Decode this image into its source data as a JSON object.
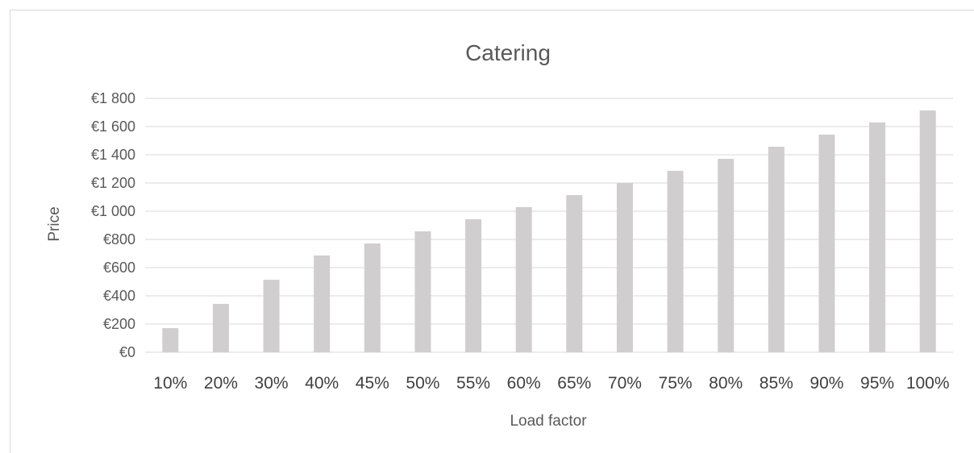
{
  "chart_data": {
    "type": "bar",
    "title": "Catering",
    "xlabel": "Load factor",
    "ylabel": "Price",
    "categories": [
      "10%",
      "20%",
      "30%",
      "40%",
      "45%",
      "50%",
      "55%",
      "60%",
      "65%",
      "70%",
      "75%",
      "80%",
      "85%",
      "90%",
      "95%",
      "100%"
    ],
    "values": [
      171,
      343,
      514,
      686,
      771,
      857,
      943,
      1029,
      1114,
      1200,
      1286,
      1371,
      1457,
      1543,
      1629,
      1714
    ],
    "ylim": [
      0,
      1800
    ],
    "yticks": [
      0,
      200,
      400,
      600,
      800,
      1000,
      1200,
      1400,
      1600,
      1800
    ],
    "ytick_labels": [
      "€0",
      "€200",
      "€400",
      "€600",
      "€800",
      "€1 000",
      "€1 200",
      "€1 400",
      "€1 600",
      "€1 800"
    ],
    "grid": true,
    "bar_color": "#d0cece",
    "grid_color": "#d9d9d9",
    "text_color": "#595959"
  }
}
